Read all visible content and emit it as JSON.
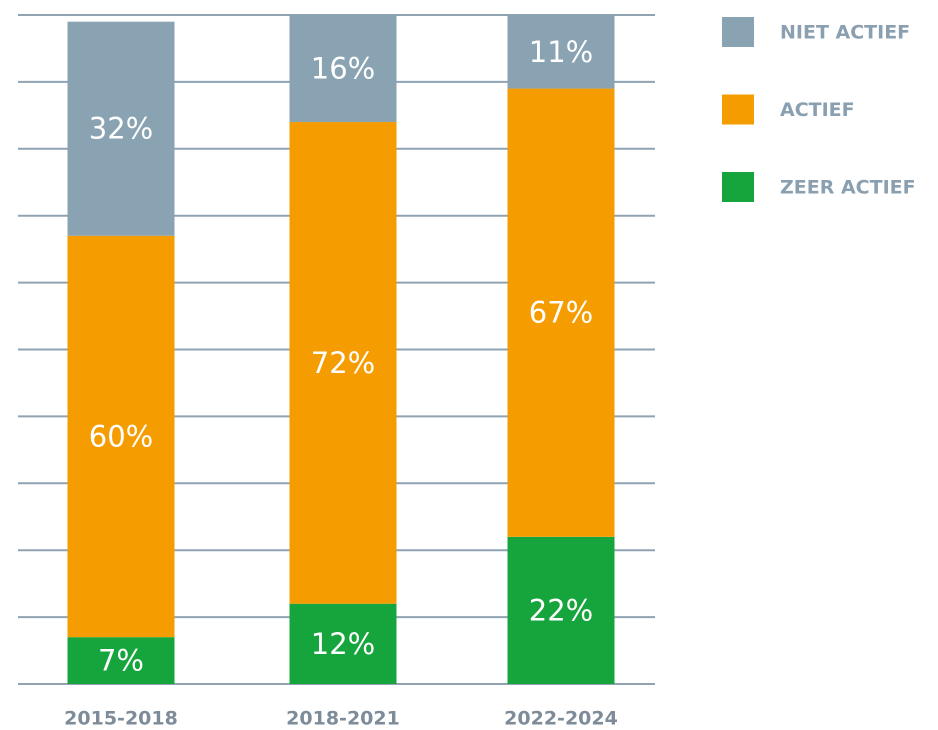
{
  "chart_data": {
    "type": "stacked_bar",
    "categories": [
      "2015-2018",
      "2018-2021",
      "2022-2024"
    ],
    "series": [
      {
        "name": "ZEER ACTIEF",
        "color": "#16a53c",
        "values": [
          7,
          12,
          22
        ],
        "value_labels": [
          "7%",
          "12%",
          "22%"
        ]
      },
      {
        "name": "ACTIEF",
        "color": "#f59d00",
        "values": [
          60,
          72,
          67
        ],
        "value_labels": [
          "60%",
          "72%",
          "67%"
        ]
      },
      {
        "name": "NIET ACTIEF",
        "color": "#8aa3b2",
        "values": [
          32,
          16,
          11
        ],
        "value_labels": [
          "32%",
          "16%",
          "11%"
        ]
      }
    ],
    "ylim": [
      0,
      100
    ],
    "yticks": [
      0,
      10,
      20,
      30,
      40,
      50,
      60,
      70,
      80,
      90,
      100
    ],
    "grid": true,
    "legend": "upper right"
  }
}
